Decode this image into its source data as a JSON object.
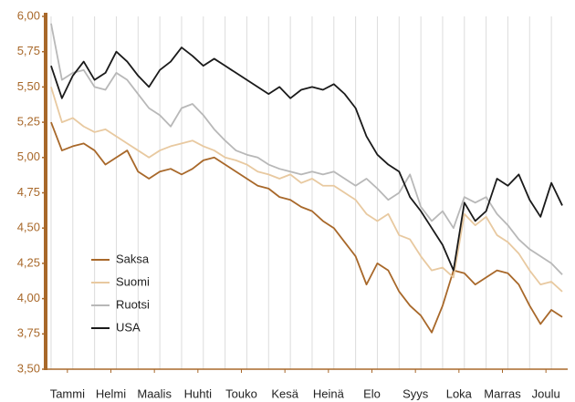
{
  "chart_data": {
    "type": "line",
    "x": [
      0.125,
      0.375,
      0.625,
      0.875,
      1.125,
      1.375,
      1.625,
      1.875,
      2.125,
      2.375,
      2.625,
      2.875,
      3.125,
      3.375,
      3.625,
      3.875,
      4.125,
      4.375,
      4.625,
      4.875,
      5.125,
      5.375,
      5.625,
      5.875,
      6.125,
      6.375,
      6.625,
      6.875,
      7.125,
      7.375,
      7.625,
      7.875,
      8.125,
      8.375,
      8.625,
      8.875,
      9.125,
      9.375,
      9.625,
      9.875,
      10.125,
      10.375,
      10.625,
      10.875,
      11.125,
      11.375,
      11.625,
      11.875
    ],
    "series": [
      {
        "name": "Saksa",
        "color": "#a8682a",
        "values": [
          5.25,
          5.05,
          5.08,
          5.1,
          5.05,
          4.95,
          5.0,
          5.05,
          4.9,
          4.85,
          4.9,
          4.92,
          4.88,
          4.92,
          4.98,
          5.0,
          4.95,
          4.9,
          4.85,
          4.8,
          4.78,
          4.72,
          4.7,
          4.65,
          4.62,
          4.55,
          4.5,
          4.4,
          4.3,
          4.1,
          4.25,
          4.2,
          4.05,
          3.95,
          3.88,
          3.76,
          3.95,
          4.2,
          4.18,
          4.1,
          4.15,
          4.2,
          4.18,
          4.1,
          3.95,
          3.82,
          3.92,
          3.87
        ]
      },
      {
        "name": "Suomi",
        "color": "#e8c9a0",
        "values": [
          5.5,
          5.25,
          5.28,
          5.22,
          5.18,
          5.2,
          5.15,
          5.1,
          5.05,
          5.0,
          5.05,
          5.08,
          5.1,
          5.12,
          5.08,
          5.05,
          5.0,
          4.98,
          4.95,
          4.9,
          4.88,
          4.85,
          4.88,
          4.82,
          4.85,
          4.8,
          4.8,
          4.75,
          4.7,
          4.6,
          4.55,
          4.6,
          4.45,
          4.42,
          4.3,
          4.2,
          4.22,
          4.15,
          4.6,
          4.52,
          4.58,
          4.45,
          4.4,
          4.32,
          4.2,
          4.1,
          4.12,
          4.05
        ]
      },
      {
        "name": "Ruotsi",
        "color": "#b8b8b8",
        "values": [
          5.95,
          5.55,
          5.6,
          5.62,
          5.5,
          5.48,
          5.6,
          5.55,
          5.45,
          5.35,
          5.3,
          5.22,
          5.35,
          5.38,
          5.3,
          5.2,
          5.12,
          5.05,
          5.02,
          5.0,
          4.95,
          4.92,
          4.9,
          4.88,
          4.9,
          4.88,
          4.9,
          4.85,
          4.8,
          4.85,
          4.78,
          4.7,
          4.75,
          4.88,
          4.65,
          4.55,
          4.62,
          4.5,
          4.72,
          4.68,
          4.72,
          4.6,
          4.52,
          4.42,
          4.35,
          4.3,
          4.25,
          4.17
        ]
      },
      {
        "name": "USA",
        "color": "#1a1a1a",
        "values": [
          5.65,
          5.42,
          5.58,
          5.68,
          5.55,
          5.6,
          5.75,
          5.68,
          5.58,
          5.5,
          5.62,
          5.68,
          5.78,
          5.72,
          5.65,
          5.7,
          5.65,
          5.6,
          5.55,
          5.5,
          5.45,
          5.5,
          5.42,
          5.48,
          5.5,
          5.48,
          5.52,
          5.45,
          5.35,
          5.15,
          5.02,
          4.95,
          4.9,
          4.72,
          4.62,
          4.5,
          4.38,
          4.2,
          4.68,
          4.55,
          4.62,
          4.85,
          4.8,
          4.88,
          4.7,
          4.58,
          4.82,
          4.66
        ]
      }
    ],
    "xlim": [
      0,
      12
    ],
    "xticks": [
      {
        "value": 0.5,
        "label": "Tammi"
      },
      {
        "value": 1.5,
        "label": "Helmi"
      },
      {
        "value": 2.5,
        "label": "Maalis"
      },
      {
        "value": 3.5,
        "label": "Huhti"
      },
      {
        "value": 4.5,
        "label": "Touko"
      },
      {
        "value": 5.5,
        "label": "Kesä"
      },
      {
        "value": 6.5,
        "label": "Heinä"
      },
      {
        "value": 7.5,
        "label": "Elo"
      },
      {
        "value": 8.5,
        "label": "Syys"
      },
      {
        "value": 9.5,
        "label": "Loka"
      },
      {
        "value": 10.5,
        "label": "Marras"
      },
      {
        "value": 11.5,
        "label": "Joulu"
      }
    ],
    "ylim": [
      3.5,
      6.0
    ],
    "yticks": [
      {
        "value": 3.5,
        "label": "3,50"
      },
      {
        "value": 3.75,
        "label": "3,75"
      },
      {
        "value": 4.0,
        "label": "4,00"
      },
      {
        "value": 4.25,
        "label": "4,25"
      },
      {
        "value": 4.5,
        "label": "4,50"
      },
      {
        "value": 4.75,
        "label": "4,75"
      },
      {
        "value": 5.0,
        "label": "5,00"
      },
      {
        "value": 5.25,
        "label": "5,25"
      },
      {
        "value": 5.5,
        "label": "5,50"
      },
      {
        "value": 5.75,
        "label": "5,75"
      },
      {
        "value": 6.0,
        "label": "6,00"
      }
    ],
    "grid": true
  }
}
